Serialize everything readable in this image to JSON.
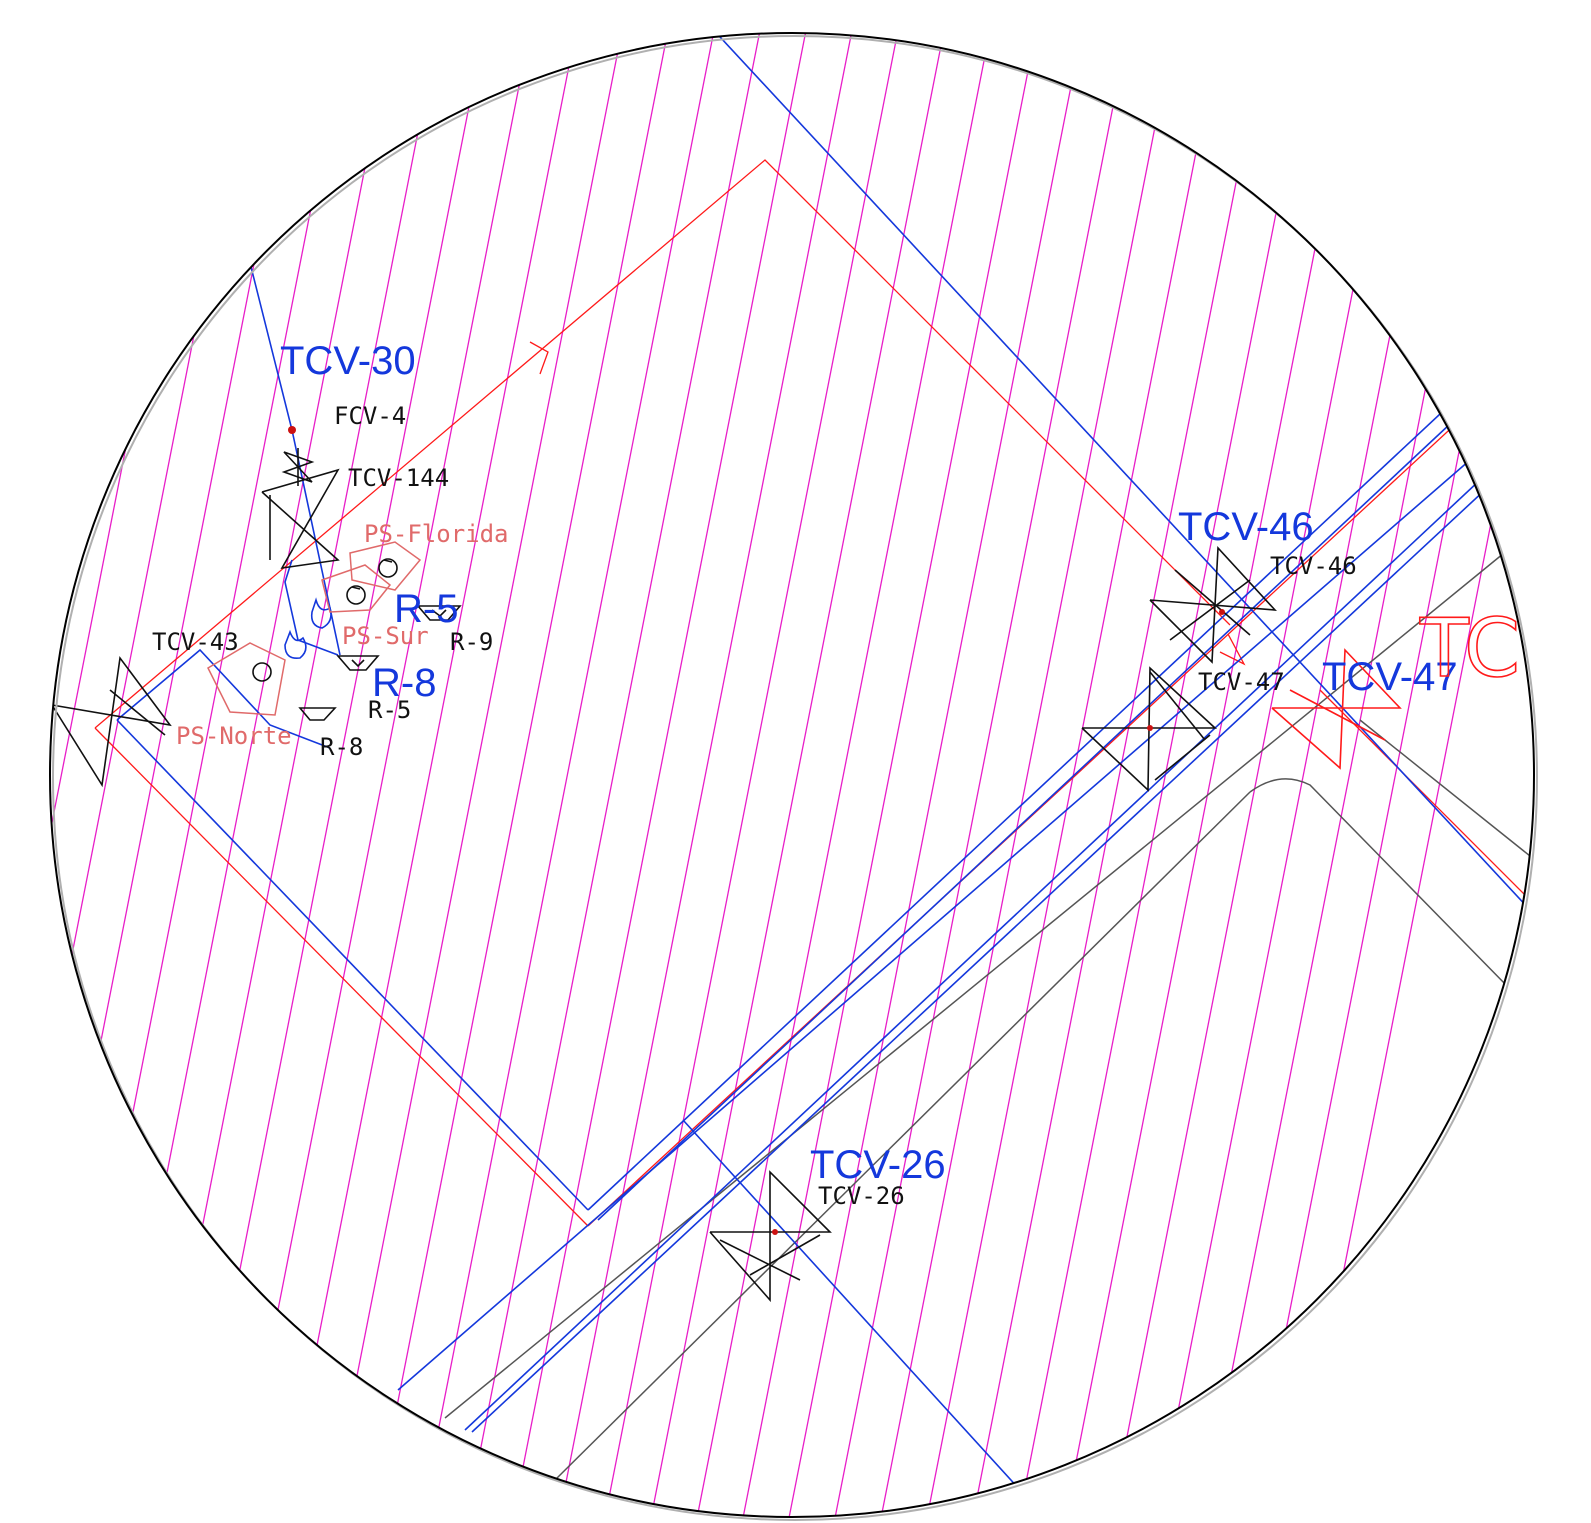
{
  "labels": {
    "tcv30_blue": "TCV-30",
    "fcv4": "FCV-4",
    "tcv144": "TCV-144",
    "ps_florida": "PS-Florida",
    "r5_blue": "R-5",
    "ps_sur": "PS-Sur",
    "r9": "R-9",
    "tcv43": "TCV-43",
    "r8_blue": "R-8",
    "r5_black": "R-5",
    "ps_norte": "PS-Norte",
    "r8_black": "R-8",
    "tcv46_blue": "TCV-46",
    "tcv46_black": "TCV-46",
    "tcv47_black": "TCV-47",
    "tcv47_blue": "TCV-47",
    "tcv_red_partial": "TCV",
    "tcv26_blue": "TCV-26",
    "tcv26_black": "TCV-26"
  },
  "colors": {
    "hatch": "#e81ec8",
    "pipe_blue": "#1438dc",
    "pipe_red": "#ff1a1a",
    "road_gray": "#555555",
    "symbol_black": "#111111",
    "station_salmon": "#e06a6a"
  }
}
